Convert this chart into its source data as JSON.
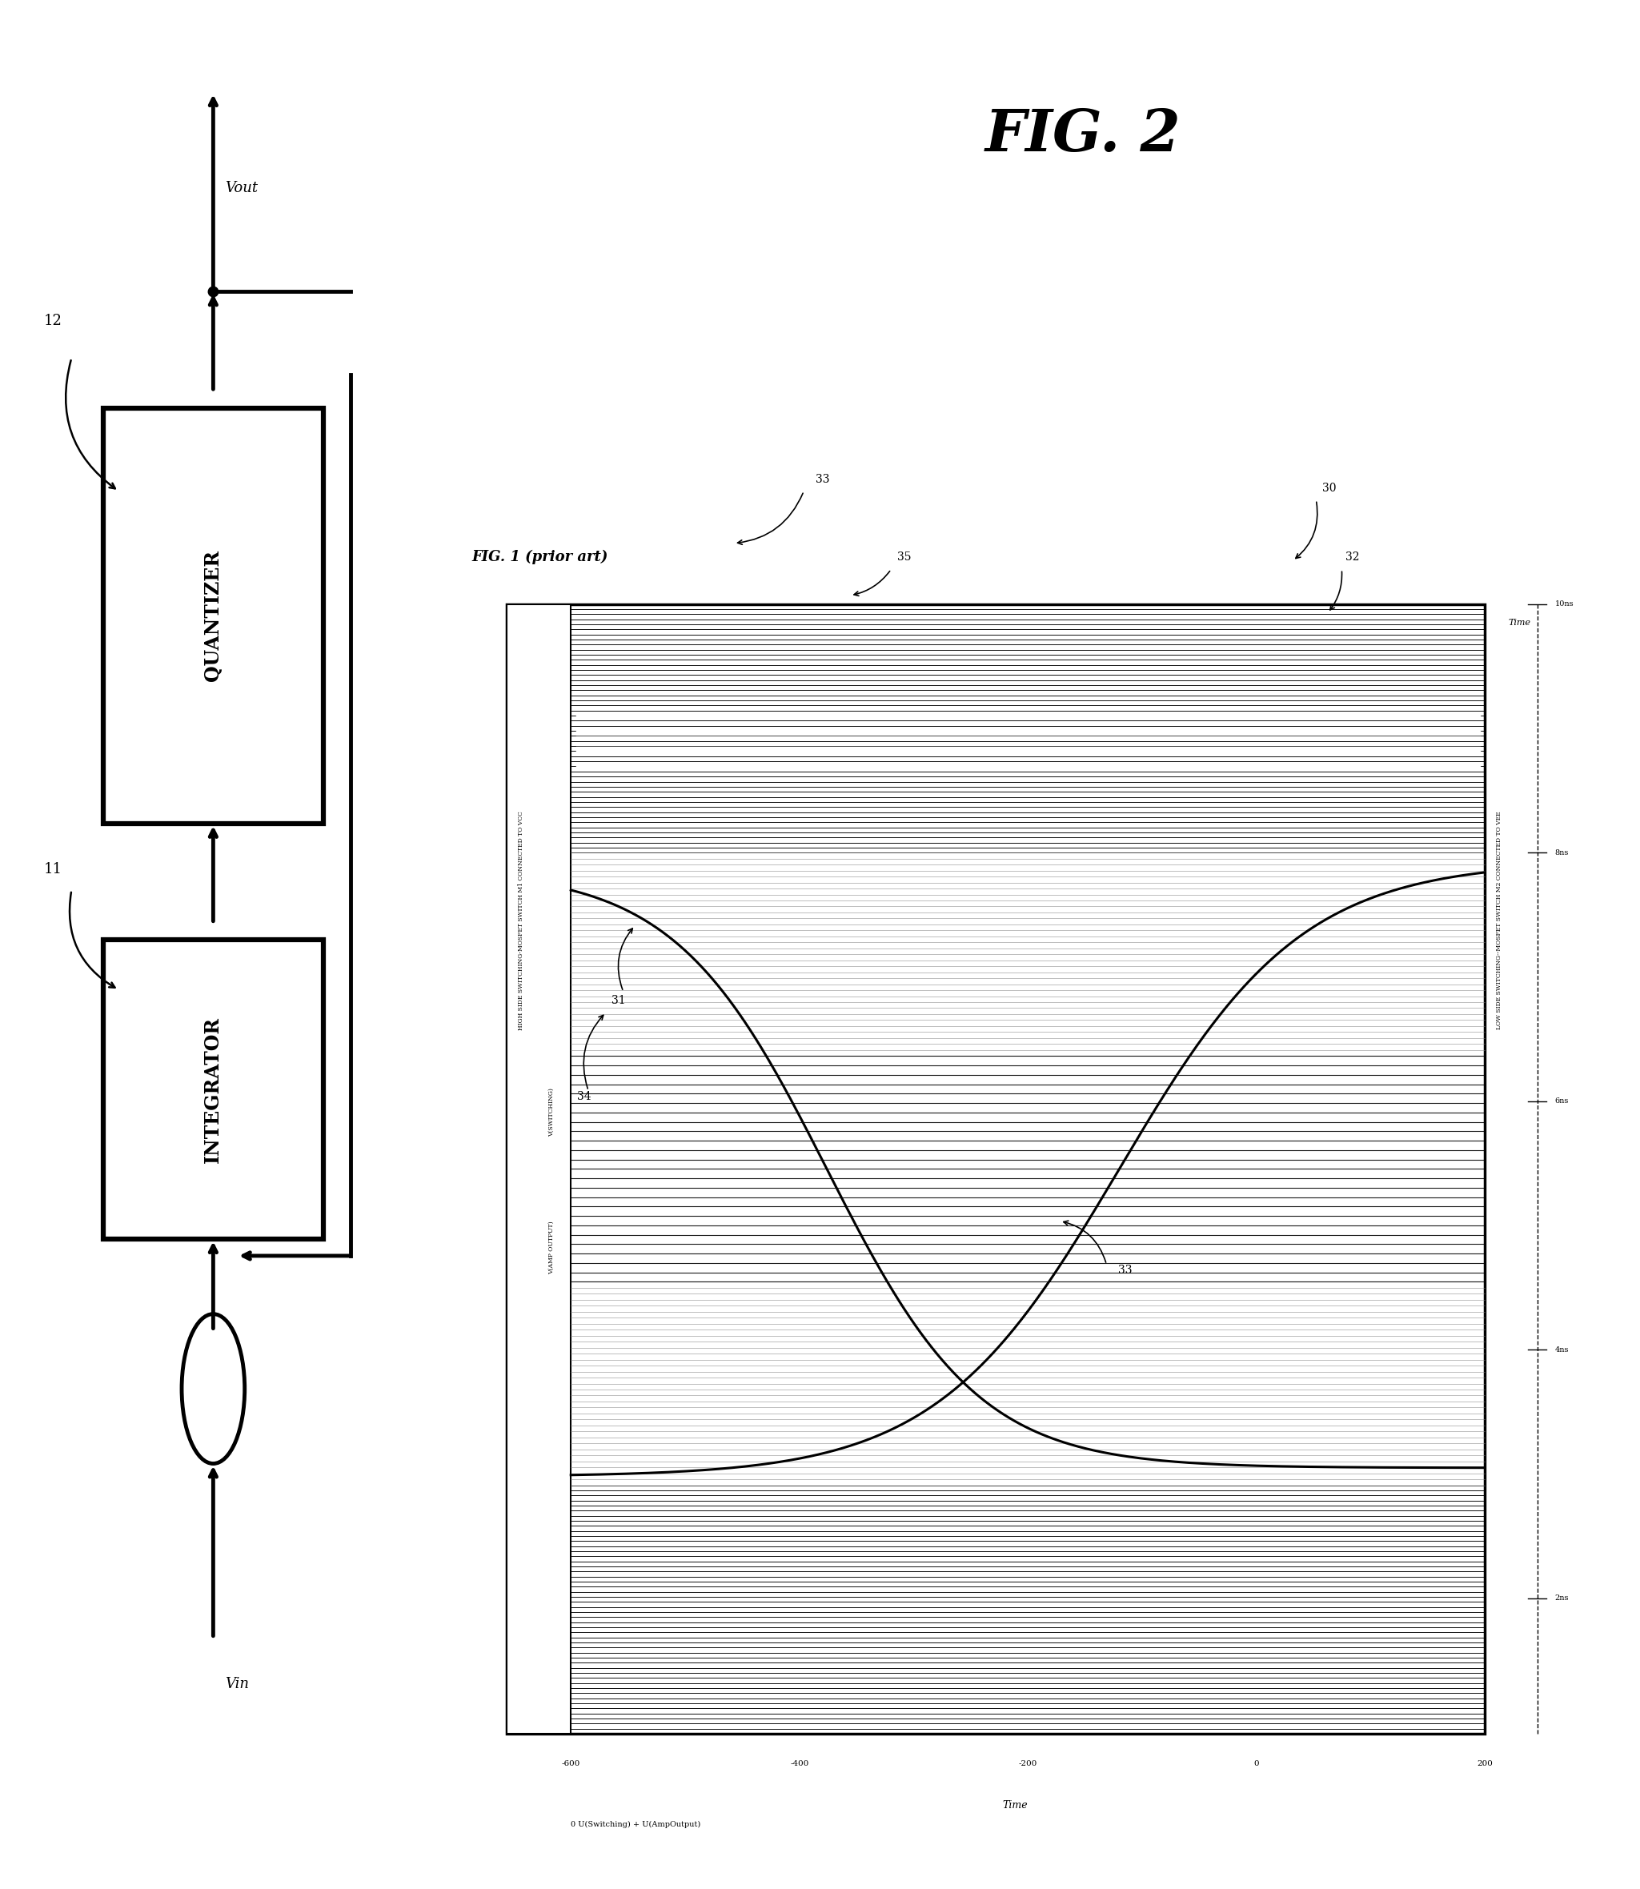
{
  "bg_color": "#ffffff",
  "fig_width": 20.49,
  "fig_height": 23.6,
  "left_panel": {
    "quantizer_label": "QUANTIZER",
    "integrator_label": "INTEGRATOR",
    "label_12": "12",
    "label_11": "11",
    "label_vout": "Vout",
    "label_vin": "Vin"
  },
  "fig2_title": "FIG. 2",
  "fig1_caption": "FIG. 1 (prior art)",
  "plot_annotations": {
    "numbers": [
      "30",
      "31",
      "32",
      "33",
      "33",
      "34",
      "35"
    ],
    "high_side_label": "HIGH SIDE SWITCHING-MOSFET SWITCH M1 CONNECTED TO VCC",
    "low_side_label": "LOW SIDE SWITCHING--MOSFET SWITCH M2 CONNECTED TO VEE",
    "v_switching_label": "V(SWITCHING)",
    "v_amp_output_label": "V(AMP OUTPUT)",
    "x_axis_label": "Time",
    "y_axis_label": "0 U(Switching) + U(AmpOutput)",
    "x_ticks": [
      "-600",
      "-400",
      "-200",
      "0",
      "200"
    ],
    "y_ticks_right": [
      "10ns",
      "8ns",
      "6ns",
      "4ns",
      "2ns"
    ]
  }
}
